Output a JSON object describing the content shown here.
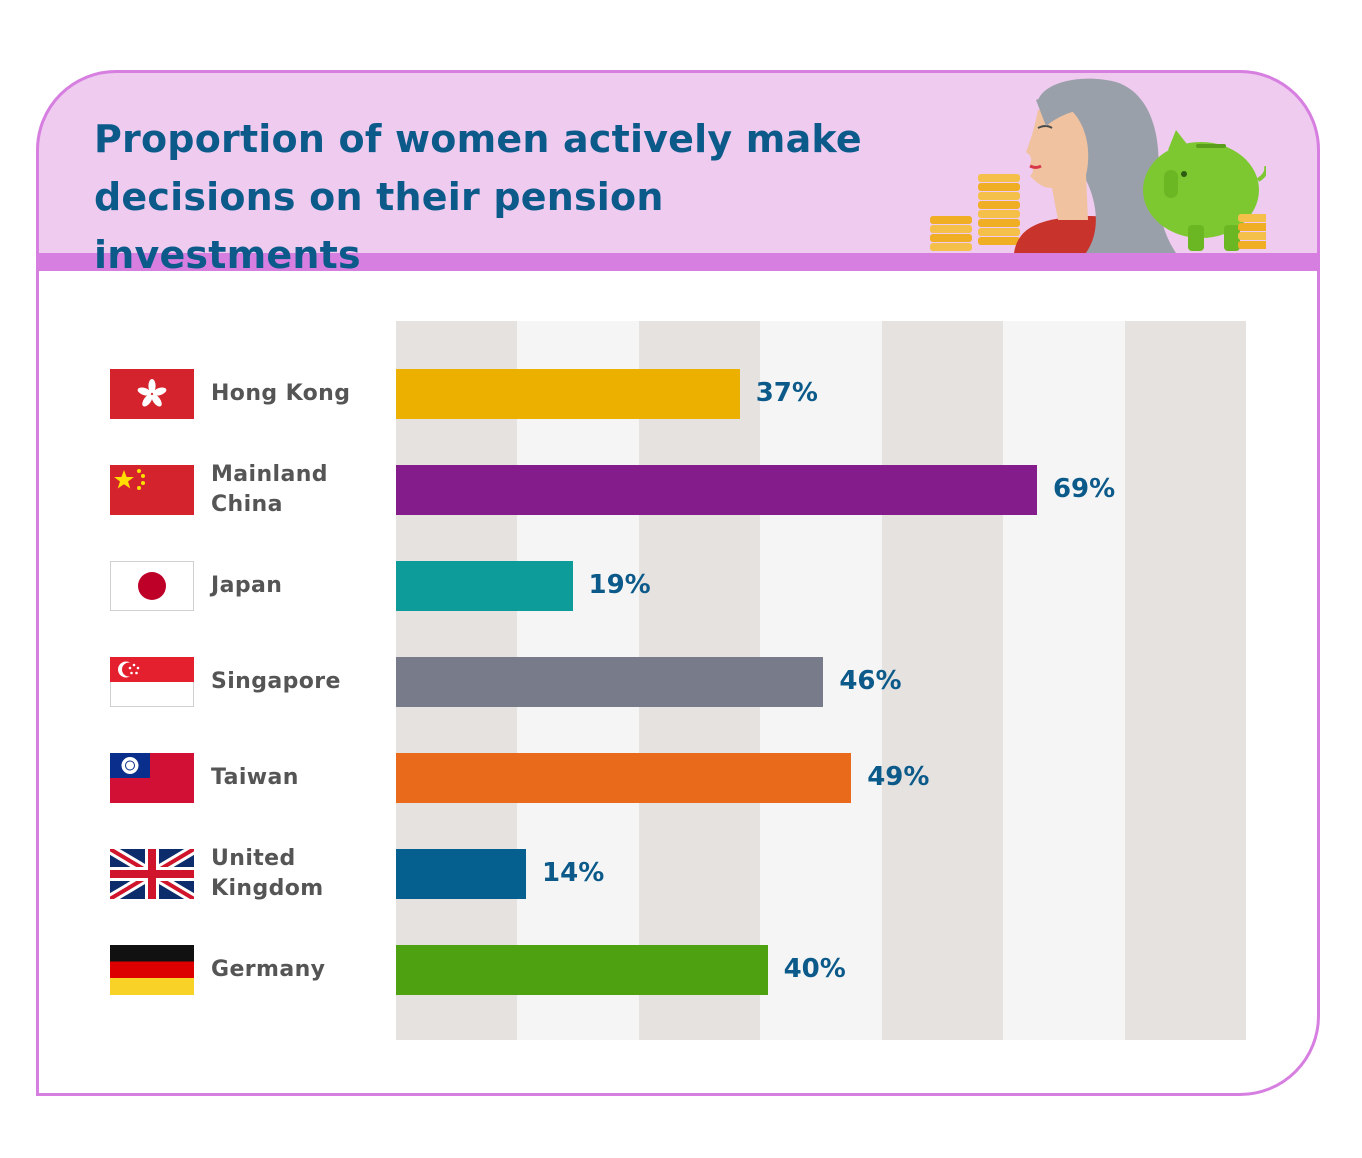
{
  "title_lines": [
    "Proportion of women actively make",
    "decisions on their pension investments"
  ],
  "chart_data": {
    "type": "bar",
    "orientation": "horizontal",
    "title": "Proportion of women actively make decisions on their pension investments",
    "categories": [
      "Hong Kong",
      "Mainland China",
      "Japan",
      "Singapore",
      "Taiwan",
      "United Kingdom",
      "Germany"
    ],
    "category_lines": [
      [
        "Hong Kong"
      ],
      [
        "Mainland",
        "China"
      ],
      [
        "Japan"
      ],
      [
        "Singapore"
      ],
      [
        "Taiwan"
      ],
      [
        "United",
        "Kingdom"
      ],
      [
        "Germany"
      ]
    ],
    "values": [
      37,
      69,
      19,
      46,
      49,
      14,
      40
    ],
    "value_labels": [
      "37%",
      "69%",
      "19%",
      "46%",
      "49%",
      "14%",
      "40%"
    ],
    "bar_colors": [
      "#ebb000",
      "#841c8c",
      "#0e9c9b",
      "#777b8a",
      "#ea6a1c",
      "#05608f",
      "#4ea110"
    ],
    "flag_icons": [
      "hong-kong-flag-icon",
      "china-flag-icon",
      "japan-flag-icon",
      "singapore-flag-icon",
      "taiwan-flag-icon",
      "uk-flag-icon",
      "germany-flag-icon"
    ],
    "xlim": [
      0,
      91.5
    ],
    "grid": true,
    "grid_band_colors": [
      "#e5e2e0",
      "#f5f5f5"
    ],
    "legend": "none"
  },
  "colors": {
    "title": "#0b5a8a",
    "value_label": "#0b5a8a",
    "category_label": "#555555",
    "header_band": "#eecbef",
    "accent_border": "#d77fe1"
  }
}
